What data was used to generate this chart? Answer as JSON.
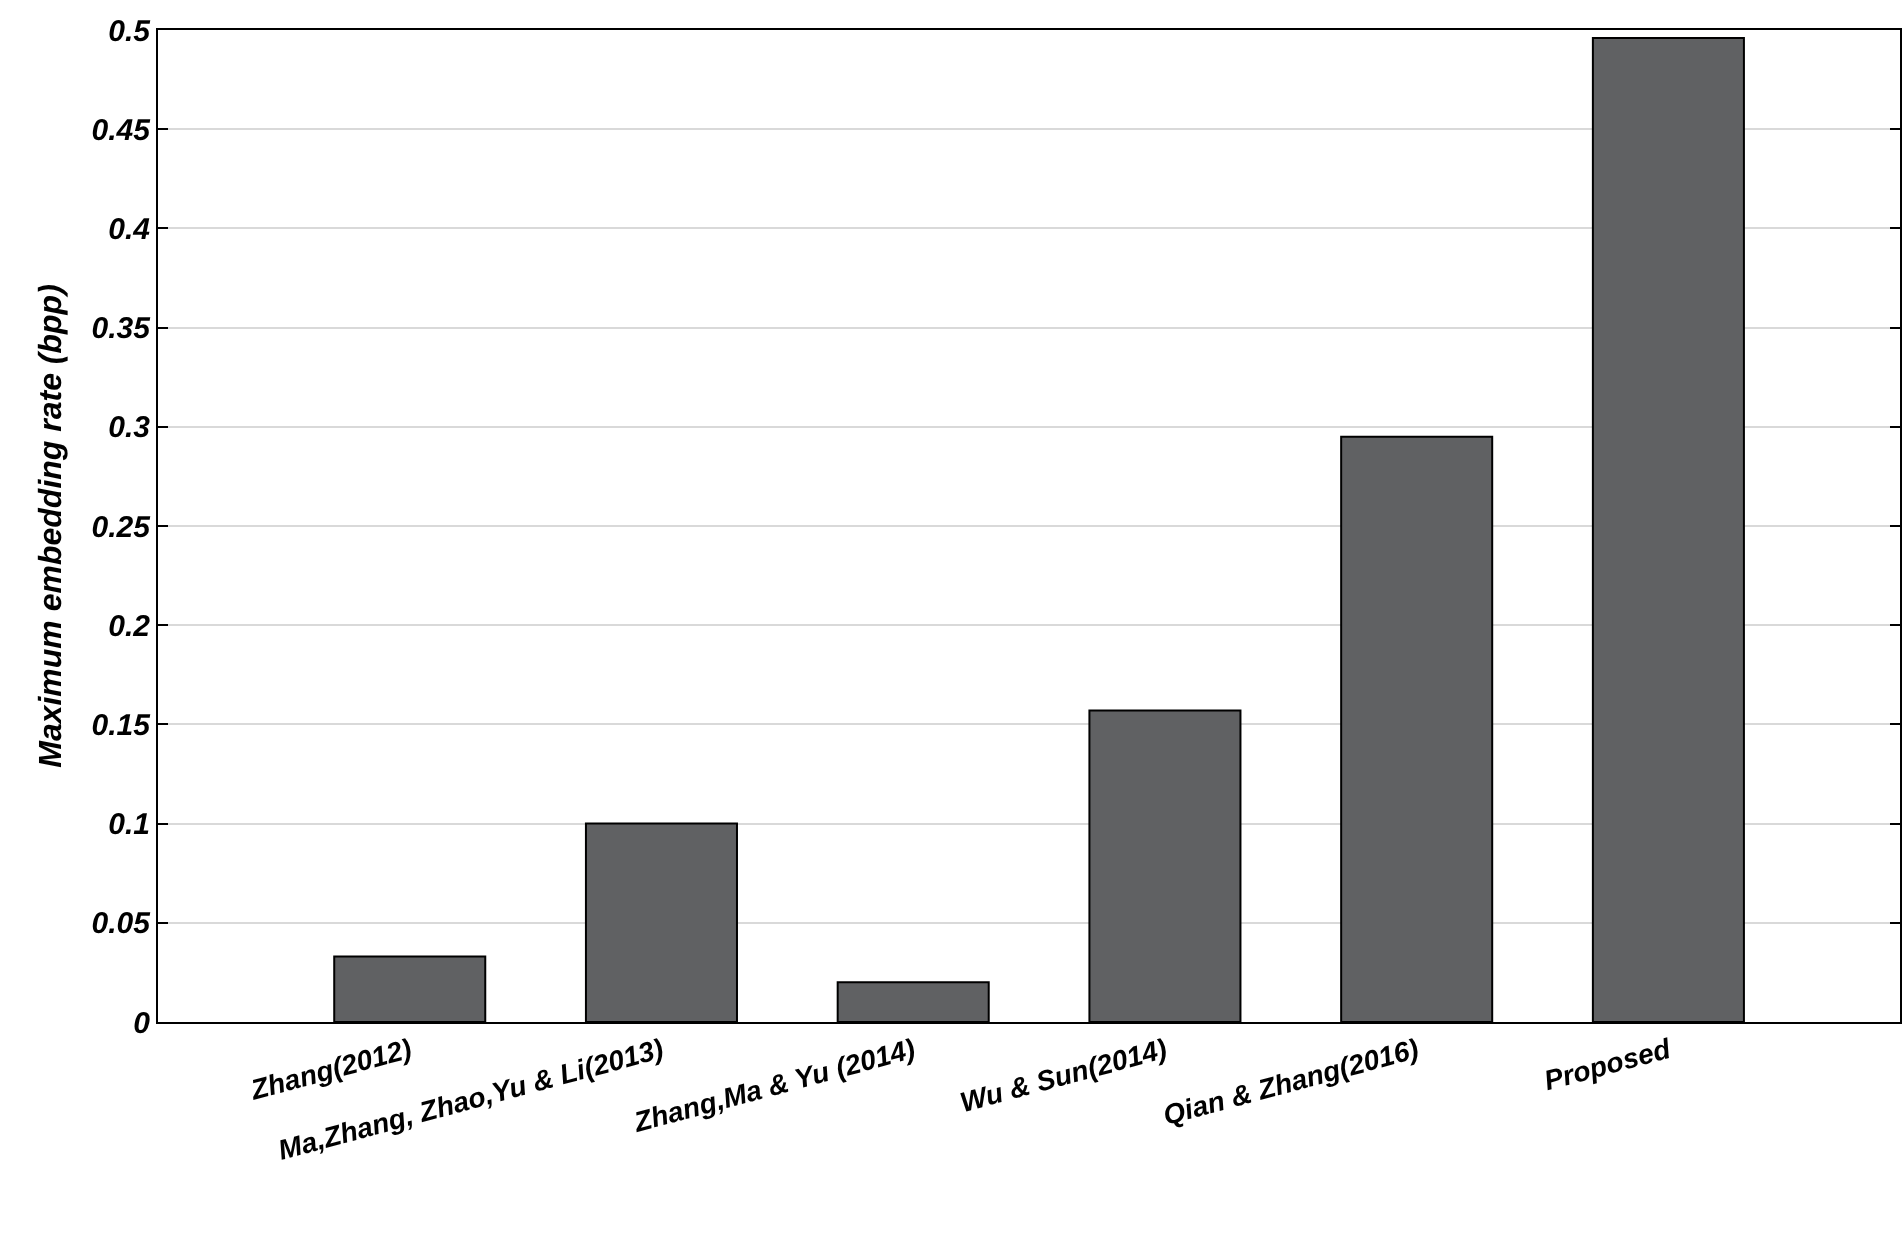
{
  "chart_data": {
    "type": "bar",
    "ylabel": "Maximum embedding rate (bpp)",
    "categories": [
      "Zhang(2012)",
      "Ma,Zhang, Zhao,Yu & Li(2013)",
      "Zhang,Ma & Yu (2014)",
      "Wu & Sun(2014)",
      "Qian & Zhang(2016)",
      "Proposed"
    ],
    "values": [
      0.033,
      0.1,
      0.02,
      0.157,
      0.295,
      0.496
    ],
    "color": "#606163",
    "ylim": [
      0,
      0.5
    ],
    "yticks": [
      0,
      0.05,
      0.1,
      0.15,
      0.2,
      0.25,
      0.3,
      0.35,
      0.4,
      0.45,
      0.5
    ],
    "grid": "y"
  }
}
